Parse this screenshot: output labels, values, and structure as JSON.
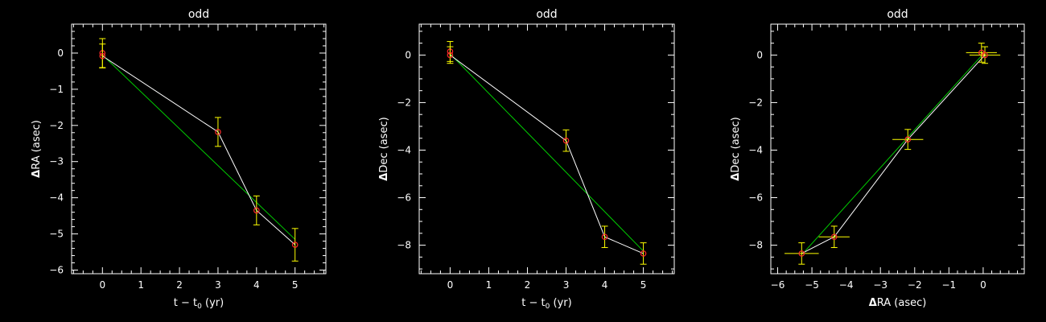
{
  "chart_data": [
    {
      "type": "scatter",
      "title": "odd",
      "xlabel_main": "t − t",
      "xlabel_sub": "0",
      "xlabel_tail": " (yr)",
      "ylabel_symbol": "Δ",
      "ylabel_text": "RA (asec)",
      "xlim": [
        -0.8,
        5.8
      ],
      "ylim": [
        -6.1,
        0.8
      ],
      "xticks": [
        0,
        1,
        2,
        3,
        4,
        5
      ],
      "yticks": [
        0,
        -1,
        -2,
        -3,
        -4,
        -5,
        -6
      ],
      "xticklabels": [
        "0",
        "1",
        "2",
        "3",
        "4",
        "5"
      ],
      "yticklabels": [
        "0",
        "−1",
        "−2",
        "−3",
        "−4",
        "−5",
        "−6"
      ],
      "points": [
        {
          "x": 0,
          "y": 0.0,
          "yerr": 0.4
        },
        {
          "x": 0,
          "y": -0.08,
          "yerr": 0.33
        },
        {
          "x": 3,
          "y": -2.18,
          "yerr": 0.4
        },
        {
          "x": 4,
          "y": -4.35,
          "yerr": 0.4
        },
        {
          "x": 5,
          "y": -5.3,
          "yerr": 0.45
        }
      ],
      "fit_line": {
        "x": [
          0,
          5
        ],
        "y": [
          -0.05,
          -5.15
        ]
      },
      "colors": {
        "data_line": "#ffffff",
        "fit_line": "#00cc00",
        "errorbar": "#ffff00",
        "marker": "#ff2a2a",
        "axes": "#ffffff"
      }
    },
    {
      "type": "scatter",
      "title": "odd",
      "xlabel_main": "t − t",
      "xlabel_sub": "0",
      "xlabel_tail": " (yr)",
      "ylabel_symbol": "Δ",
      "ylabel_text": "Dec (asec)",
      "xlim": [
        -0.8,
        5.8
      ],
      "ylim": [
        -9.2,
        1.3
      ],
      "xticks": [
        0,
        1,
        2,
        3,
        4,
        5
      ],
      "yticks": [
        0,
        -2,
        -4,
        -6,
        -8
      ],
      "xticklabels": [
        "0",
        "1",
        "2",
        "3",
        "4",
        "5"
      ],
      "yticklabels": [
        "0",
        "−2",
        "−4",
        "−6",
        "−8"
      ],
      "points": [
        {
          "x": 0,
          "y": 0.15,
          "yerr": 0.42
        },
        {
          "x": 0,
          "y": 0.0,
          "yerr": 0.35
        },
        {
          "x": 3,
          "y": -3.6,
          "yerr": 0.45
        },
        {
          "x": 4,
          "y": -7.65,
          "yerr": 0.45
        },
        {
          "x": 5,
          "y": -8.35,
          "yerr": 0.45
        }
      ],
      "fit_line": {
        "x": [
          0,
          5
        ],
        "y": [
          0.05,
          -8.25
        ]
      },
      "colors": {
        "data_line": "#ffffff",
        "fit_line": "#00cc00",
        "errorbar": "#ffff00",
        "marker": "#ff2a2a",
        "axes": "#ffffff"
      }
    },
    {
      "type": "scatter",
      "title": "odd",
      "xlabel_main": "",
      "xlabel_sub": "",
      "xlabel_tail": "",
      "xlabel_symbol": "Δ",
      "xlabel_text": "RA (asec)",
      "ylabel_symbol": "Δ",
      "ylabel_text": "Dec (asec)",
      "xlim": [
        -6.2,
        1.2
      ],
      "ylim": [
        -9.2,
        1.3
      ],
      "xticks": [
        -6,
        -5,
        -4,
        -3,
        -2,
        -1,
        0
      ],
      "yticks": [
        0,
        -2,
        -4,
        -6,
        -8
      ],
      "xticklabels": [
        "−6",
        "−5",
        "−4",
        "−3",
        "−2",
        "−1",
        "0"
      ],
      "yticklabels": [
        "0",
        "−2",
        "−4",
        "−6",
        "−8"
      ],
      "points": [
        {
          "x": -0.05,
          "y": 0.1,
          "xerr": 0.45,
          "yerr": 0.4
        },
        {
          "x": 0.05,
          "y": 0.0,
          "xerr": 0.45,
          "yerr": 0.35
        },
        {
          "x": -2.2,
          "y": -3.55,
          "xerr": 0.45,
          "yerr": 0.42
        },
        {
          "x": -4.35,
          "y": -7.65,
          "xerr": 0.45,
          "yerr": 0.45
        },
        {
          "x": -5.3,
          "y": -8.35,
          "xerr": 0.5,
          "yerr": 0.45
        }
      ],
      "fit_line": {
        "x": [
          -5.2,
          0.0
        ],
        "y": [
          -8.25,
          0.05
        ]
      },
      "colors": {
        "data_line": "#ffffff",
        "fit_line": "#00cc00",
        "errorbar": "#ffff00",
        "marker": "#ff2a2a",
        "axes": "#ffffff"
      }
    }
  ]
}
